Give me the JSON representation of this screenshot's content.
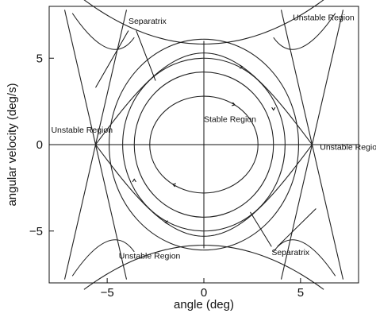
{
  "chart_data": {
    "type": "line",
    "title": "",
    "xlabel": "angle (deg)",
    "ylabel": "angular velocity (deg/s)",
    "xlim": [
      -8,
      8
    ],
    "ylim": [
      -8,
      8
    ],
    "x_ticks": [
      {
        "value": -5,
        "label": "−5"
      },
      {
        "value": 0,
        "label": "0"
      },
      {
        "value": 5,
        "label": "5"
      }
    ],
    "y_ticks": [
      {
        "value": 5,
        "label": "5"
      },
      {
        "value": 0,
        "label": "0"
      },
      {
        "value": -5,
        "label": "−5"
      }
    ],
    "grid": false,
    "legend": "none",
    "saddle_points": [
      [
        -5.6,
        0
      ],
      [
        5.6,
        0
      ]
    ],
    "closed_orbits": [
      {
        "name": "",
        "a": 4.9,
        "b": 6.1
      },
      {
        "name": "",
        "a": 4.2,
        "b": 5.0
      },
      {
        "name": "",
        "a": 3.6,
        "b": 4.2
      },
      {
        "name": "",
        "a": 2.8,
        "b": 2.8
      }
    ],
    "annotations": [
      {
        "text": "Separatrix",
        "x": -3.9,
        "y": 7.0
      },
      {
        "text": "Unstable Region",
        "x": 4.6,
        "y": 7.2
      },
      {
        "text": "Unstable Region",
        "x": -7.9,
        "y": 0.7
      },
      {
        "text": "Unstable Region",
        "x": 6.0,
        "y": -0.3
      },
      {
        "text": "Stable Region",
        "x": 0.0,
        "y": 1.3
      },
      {
        "text": "Unstable Region",
        "x": -4.4,
        "y": -6.6
      },
      {
        "text": "Separatrix",
        "x": 3.5,
        "y": -6.4
      }
    ]
  }
}
